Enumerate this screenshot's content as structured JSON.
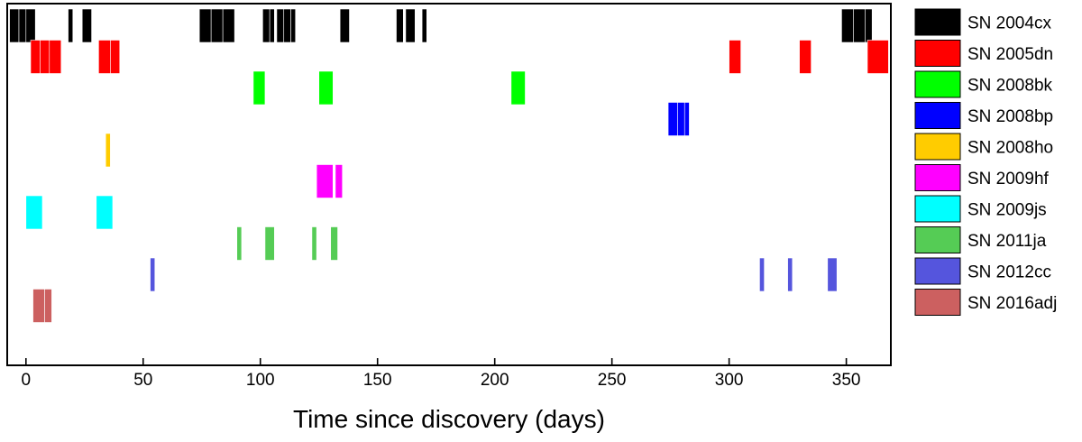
{
  "chart_data": {
    "type": "bar",
    "subtype": "timeline",
    "title": "",
    "xlabel": "Time since discovery (days)",
    "ylabel": "",
    "xlim": [
      -8,
      369
    ],
    "xticks": [
      0,
      50,
      100,
      150,
      200,
      250,
      300,
      350
    ],
    "grid": false,
    "legend_position": "right",
    "series": [
      {
        "name": "SN 2004cx",
        "color": "#000000",
        "intervals": [
          [
            -7,
            -3
          ],
          [
            -3,
            0
          ],
          [
            0,
            4
          ],
          [
            18,
            20
          ],
          [
            24,
            28
          ],
          [
            74,
            79
          ],
          [
            79,
            84
          ],
          [
            84,
            89
          ],
          [
            101,
            104
          ],
          [
            104,
            106
          ],
          [
            107,
            110
          ],
          [
            110,
            113
          ],
          [
            113,
            115
          ],
          [
            134,
            138
          ],
          [
            158,
            161
          ],
          [
            162,
            166
          ],
          [
            169,
            171
          ],
          [
            348,
            353
          ],
          [
            353,
            358
          ],
          [
            358,
            361
          ]
        ]
      },
      {
        "name": "SN 2005dn",
        "color": "#ff0000",
        "intervals": [
          [
            2,
            6
          ],
          [
            6,
            10
          ],
          [
            10,
            15
          ],
          [
            31,
            36
          ],
          [
            36,
            40
          ],
          [
            300,
            305
          ],
          [
            330,
            335
          ],
          [
            359,
            368
          ]
        ]
      },
      {
        "name": "SN 2008bk",
        "color": "#00ff00",
        "intervals": [
          [
            97,
            102
          ],
          [
            125,
            131
          ],
          [
            207,
            213
          ]
        ]
      },
      {
        "name": "SN 2008bp",
        "color": "#0000ff",
        "intervals": [
          [
            274,
            278
          ],
          [
            278,
            281
          ],
          [
            281,
            283
          ]
        ]
      },
      {
        "name": "SN 2008ho",
        "color": "#ffcc00",
        "intervals": [
          [
            34,
            36
          ]
        ]
      },
      {
        "name": "SN 2009hf",
        "color": "#ff00ff",
        "intervals": [
          [
            124,
            131
          ],
          [
            132,
            135
          ]
        ]
      },
      {
        "name": "SN 2009js",
        "color": "#00ffff",
        "intervals": [
          [
            0,
            7
          ],
          [
            30,
            37
          ]
        ]
      },
      {
        "name": "SN 2011ja",
        "color": "#55cc55",
        "intervals": [
          [
            90,
            92
          ],
          [
            102,
            106
          ],
          [
            122,
            124
          ],
          [
            130,
            133
          ]
        ]
      },
      {
        "name": "SN 2012cc",
        "color": "#5555dd",
        "intervals": [
          [
            53,
            55
          ],
          [
            313,
            315
          ],
          [
            325,
            327
          ],
          [
            342,
            346
          ]
        ]
      },
      {
        "name": "SN 2016adj",
        "color": "#cc6060",
        "intervals": [
          [
            3,
            8
          ],
          [
            8,
            11
          ]
        ]
      }
    ]
  }
}
